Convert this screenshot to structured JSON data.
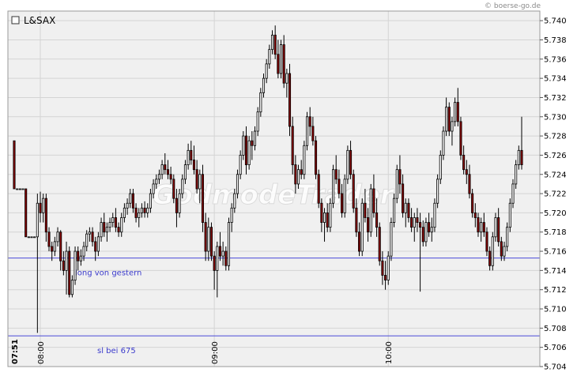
{
  "credit": "© boerse-go.de",
  "watermark": "GodmodeTrader",
  "legend": {
    "label": "L&SAX"
  },
  "colors": {
    "background": "#f0f0f0",
    "grid": "#d4d4d4",
    "up_body": "#ffffff",
    "down_body": "#8b0000",
    "wick": "#000000",
    "hline": "#4a4ad8"
  },
  "chart_data": {
    "type": "candlestick",
    "title": "L&SAX",
    "ylim": [
      5.704,
      5.741
    ],
    "y_ticks": [
      5.704,
      5.706,
      5.708,
      5.71,
      5.712,
      5.714,
      5.716,
      5.718,
      5.72,
      5.722,
      5.724,
      5.726,
      5.728,
      5.73,
      5.732,
      5.734,
      5.736,
      5.738,
      5.74
    ],
    "y_tick_labels": [
      "5.704",
      "5.706",
      "5.708",
      "5.710",
      "5.712",
      "5.714",
      "5.716",
      "5.718",
      "5.720",
      "5.722",
      "5.724",
      "5.726",
      "5.728",
      "5.730",
      "5.732",
      "5.734",
      "5.736",
      "5.738",
      "5.740"
    ],
    "x_time_labels": [
      {
        "label": "07:51",
        "bar": 0,
        "bold": true
      },
      {
        "label": "08:00",
        "bar": 9
      },
      {
        "label": "09:00",
        "bar": 69
      },
      {
        "label": "10:00",
        "bar": 129
      }
    ],
    "grid": true,
    "horizontal_lines": [
      {
        "value": 5.7153,
        "label": "long von gestern"
      },
      {
        "value": 5.7072,
        "label": "sl bei 675"
      }
    ],
    "candles": [
      [
        5.7275,
        5.7275,
        5.7225,
        5.7225
      ],
      [
        5.7225,
        5.7225,
        5.7225,
        5.7225
      ],
      [
        5.7225,
        5.7225,
        5.7225,
        5.7225
      ],
      [
        5.7225,
        5.7225,
        5.7225,
        5.7225
      ],
      [
        5.7225,
        5.7225,
        5.7175,
        5.7175
      ],
      [
        5.7175,
        5.7175,
        5.7175,
        5.7175
      ],
      [
        5.7175,
        5.7175,
        5.7175,
        5.7175
      ],
      [
        5.7175,
        5.7175,
        5.7175,
        5.7175
      ],
      [
        5.7175,
        5.722,
        5.7075,
        5.721
      ],
      [
        5.721,
        5.7222,
        5.719,
        5.72
      ],
      [
        5.72,
        5.722,
        5.719,
        5.7215
      ],
      [
        5.7215,
        5.722,
        5.717,
        5.718
      ],
      [
        5.718,
        5.7185,
        5.716,
        5.7165
      ],
      [
        5.7165,
        5.717,
        5.715,
        5.716
      ],
      [
        5.716,
        5.7175,
        5.7155,
        5.717
      ],
      [
        5.717,
        5.7185,
        5.7165,
        5.718
      ],
      [
        5.718,
        5.7182,
        5.714,
        5.715
      ],
      [
        5.715,
        5.716,
        5.7135,
        5.714
      ],
      [
        5.714,
        5.717,
        5.7115,
        5.716
      ],
      [
        5.716,
        5.7165,
        5.7112,
        5.7115
      ],
      [
        5.7115,
        5.7135,
        5.7112,
        5.713
      ],
      [
        5.713,
        5.7165,
        5.7125,
        5.716
      ],
      [
        5.716,
        5.7165,
        5.714,
        5.715
      ],
      [
        5.715,
        5.7162,
        5.7145,
        5.7155
      ],
      [
        5.7155,
        5.717,
        5.715,
        5.7165
      ],
      [
        5.7165,
        5.7182,
        5.716,
        5.7178
      ],
      [
        5.7178,
        5.7185,
        5.717,
        5.718
      ],
      [
        5.718,
        5.7185,
        5.7165,
        5.717
      ],
      [
        5.717,
        5.7175,
        5.715,
        5.716
      ],
      [
        5.716,
        5.718,
        5.7155,
        5.7175
      ],
      [
        5.7175,
        5.7195,
        5.717,
        5.719
      ],
      [
        5.719,
        5.72,
        5.7175,
        5.718
      ],
      [
        5.718,
        5.719,
        5.717,
        5.7185
      ],
      [
        5.7185,
        5.7195,
        5.718,
        5.719
      ],
      [
        5.719,
        5.72,
        5.7185,
        5.7195
      ],
      [
        5.7195,
        5.7205,
        5.718,
        5.7185
      ],
      [
        5.7185,
        5.719,
        5.7175,
        5.718
      ],
      [
        5.718,
        5.72,
        5.7175,
        5.7195
      ],
      [
        5.7195,
        5.721,
        5.719,
        5.7205
      ],
      [
        5.7205,
        5.7215,
        5.7198,
        5.721
      ],
      [
        5.721,
        5.7225,
        5.7205,
        5.722
      ],
      [
        5.722,
        5.7225,
        5.72,
        5.7205
      ],
      [
        5.7205,
        5.721,
        5.719,
        5.7195
      ],
      [
        5.7195,
        5.7205,
        5.7185,
        5.72
      ],
      [
        5.72,
        5.721,
        5.7195,
        5.7205
      ],
      [
        5.7205,
        5.7212,
        5.7195,
        5.72
      ],
      [
        5.72,
        5.721,
        5.7195,
        5.7205
      ],
      [
        5.7205,
        5.7225,
        5.72,
        5.722
      ],
      [
        5.722,
        5.7235,
        5.7215,
        5.723
      ],
      [
        5.723,
        5.724,
        5.7225,
        5.7235
      ],
      [
        5.7235,
        5.7245,
        5.723,
        5.724
      ],
      [
        5.724,
        5.7255,
        5.7235,
        5.725
      ],
      [
        5.725,
        5.7262,
        5.724,
        5.7245
      ],
      [
        5.7245,
        5.7255,
        5.7235,
        5.724
      ],
      [
        5.724,
        5.7248,
        5.723,
        5.7235
      ],
      [
        5.7235,
        5.724,
        5.721,
        5.7215
      ],
      [
        5.7215,
        5.7225,
        5.7185,
        5.72
      ],
      [
        5.72,
        5.7225,
        5.7195,
        5.722
      ],
      [
        5.722,
        5.724,
        5.7215,
        5.7235
      ],
      [
        5.7235,
        5.7255,
        5.723,
        5.725
      ],
      [
        5.725,
        5.7272,
        5.7245,
        5.7265
      ],
      [
        5.7265,
        5.7275,
        5.725,
        5.7255
      ],
      [
        5.7255,
        5.727,
        5.724,
        5.7245
      ],
      [
        5.7245,
        5.7255,
        5.722,
        5.7225
      ],
      [
        5.7225,
        5.7245,
        5.721,
        5.724
      ],
      [
        5.724,
        5.725,
        5.718,
        5.719
      ],
      [
        5.719,
        5.72,
        5.715,
        5.716
      ],
      [
        5.716,
        5.7195,
        5.715,
        5.7185
      ],
      [
        5.7185,
        5.719,
        5.715,
        5.7155
      ],
      [
        5.7155,
        5.716,
        5.712,
        5.714
      ],
      [
        5.714,
        5.717,
        5.7112,
        5.7165
      ],
      [
        5.7165,
        5.718,
        5.715,
        5.7155
      ],
      [
        5.7155,
        5.717,
        5.7145,
        5.716
      ],
      [
        5.716,
        5.7165,
        5.714,
        5.7145
      ],
      [
        5.7145,
        5.7195,
        5.714,
        5.719
      ],
      [
        5.719,
        5.721,
        5.718,
        5.7205
      ],
      [
        5.7205,
        5.7225,
        5.72,
        5.722
      ],
      [
        5.722,
        5.7245,
        5.7215,
        5.724
      ],
      [
        5.724,
        5.7265,
        5.7235,
        5.726
      ],
      [
        5.726,
        5.7285,
        5.7255,
        5.728
      ],
      [
        5.728,
        5.729,
        5.724,
        5.725
      ],
      [
        5.725,
        5.728,
        5.7245,
        5.7275
      ],
      [
        5.7275,
        5.7285,
        5.7255,
        5.727
      ],
      [
        5.727,
        5.729,
        5.7265,
        5.7285
      ],
      [
        5.7285,
        5.731,
        5.728,
        5.7305
      ],
      [
        5.7305,
        5.733,
        5.73,
        5.7325
      ],
      [
        5.7325,
        5.7345,
        5.732,
        5.734
      ],
      [
        5.734,
        5.736,
        5.7335,
        5.7355
      ],
      [
        5.7355,
        5.7375,
        5.735,
        5.737
      ],
      [
        5.737,
        5.739,
        5.7365,
        5.7385
      ],
      [
        5.7385,
        5.7395,
        5.736,
        5.7365
      ],
      [
        5.7365,
        5.738,
        5.734,
        5.7345
      ],
      [
        5.7345,
        5.738,
        5.734,
        5.7375
      ],
      [
        5.7375,
        5.7385,
        5.733,
        5.7335
      ],
      [
        5.7335,
        5.735,
        5.732,
        5.7345
      ],
      [
        5.7345,
        5.7355,
        5.728,
        5.729
      ],
      [
        5.729,
        5.73,
        5.724,
        5.725
      ],
      [
        5.725,
        5.726,
        5.722,
        5.723
      ],
      [
        5.723,
        5.725,
        5.7225,
        5.7245
      ],
      [
        5.7245,
        5.7255,
        5.7235,
        5.724
      ],
      [
        5.724,
        5.7275,
        5.7235,
        5.727
      ],
      [
        5.727,
        5.7305,
        5.7265,
        5.73
      ],
      [
        5.73,
        5.731,
        5.728,
        5.729
      ],
      [
        5.729,
        5.73,
        5.727,
        5.7275
      ],
      [
        5.7275,
        5.728,
        5.7235,
        5.724
      ],
      [
        5.724,
        5.7245,
        5.7205,
        5.721
      ],
      [
        5.721,
        5.7215,
        5.718,
        5.719
      ],
      [
        5.719,
        5.7205,
        5.717,
        5.72
      ],
      [
        5.72,
        5.721,
        5.718,
        5.7185
      ],
      [
        5.7185,
        5.7215,
        5.718,
        5.721
      ],
      [
        5.721,
        5.725,
        5.7205,
        5.7245
      ],
      [
        5.7245,
        5.726,
        5.723,
        5.7235
      ],
      [
        5.7235,
        5.7245,
        5.7215,
        5.722
      ],
      [
        5.722,
        5.723,
        5.7195,
        5.72
      ],
      [
        5.72,
        5.724,
        5.7195,
        5.7235
      ],
      [
        5.7235,
        5.727,
        5.723,
        5.7265
      ],
      [
        5.7265,
        5.7275,
        5.7235,
        5.724
      ],
      [
        5.724,
        5.7245,
        5.72,
        5.7205
      ],
      [
        5.7205,
        5.7215,
        5.7175,
        5.718
      ],
      [
        5.718,
        5.719,
        5.7155,
        5.716
      ],
      [
        5.716,
        5.7215,
        5.7155,
        5.721
      ],
      [
        5.721,
        5.7225,
        5.719,
        5.7195
      ],
      [
        5.7195,
        5.7205,
        5.717,
        5.718
      ],
      [
        5.718,
        5.723,
        5.7175,
        5.7225
      ],
      [
        5.7225,
        5.724,
        5.7195,
        5.72
      ],
      [
        5.72,
        5.7215,
        5.7175,
        5.7185
      ],
      [
        5.7185,
        5.719,
        5.7145,
        5.715
      ],
      [
        5.715,
        5.716,
        5.7125,
        5.7135
      ],
      [
        5.7135,
        5.715,
        5.712,
        5.713
      ],
      [
        5.713,
        5.716,
        5.7125,
        5.7155
      ],
      [
        5.7155,
        5.7195,
        5.715,
        5.719
      ],
      [
        5.719,
        5.722,
        5.7185,
        5.7215
      ],
      [
        5.7215,
        5.725,
        5.721,
        5.7245
      ],
      [
        5.7245,
        5.726,
        5.722,
        5.723
      ],
      [
        5.723,
        5.724,
        5.7195,
        5.72
      ],
      [
        5.72,
        5.7215,
        5.7185,
        5.721
      ],
      [
        5.721,
        5.7215,
        5.719,
        5.7195
      ],
      [
        5.7195,
        5.7205,
        5.718,
        5.7185
      ],
      [
        5.7185,
        5.72,
        5.717,
        5.7195
      ],
      [
        5.7195,
        5.7205,
        5.718,
        5.719
      ],
      [
        5.719,
        5.72,
        5.7118,
        5.7185
      ],
      [
        5.7185,
        5.7192,
        5.7165,
        5.717
      ],
      [
        5.717,
        5.7195,
        5.7165,
        5.719
      ],
      [
        5.719,
        5.72,
        5.7175,
        5.718
      ],
      [
        5.718,
        5.7195,
        5.717,
        5.7185
      ],
      [
        5.7185,
        5.7215,
        5.718,
        5.721
      ],
      [
        5.721,
        5.724,
        5.7205,
        5.7235
      ],
      [
        5.7235,
        5.7265,
        5.723,
        5.726
      ],
      [
        5.726,
        5.729,
        5.7255,
        5.7285
      ],
      [
        5.7285,
        5.732,
        5.728,
        5.731
      ],
      [
        5.731,
        5.7315,
        5.728,
        5.7285
      ],
      [
        5.7285,
        5.73,
        5.727,
        5.7295
      ],
      [
        5.7295,
        5.732,
        5.729,
        5.7315
      ],
      [
        5.7315,
        5.733,
        5.729,
        5.7295
      ],
      [
        5.7295,
        5.73,
        5.7255,
        5.726
      ],
      [
        5.726,
        5.727,
        5.724,
        5.7245
      ],
      [
        5.7245,
        5.7255,
        5.723,
        5.724
      ],
      [
        5.724,
        5.725,
        5.7215,
        5.722
      ],
      [
        5.722,
        5.7225,
        5.7195,
        5.72
      ],
      [
        5.72,
        5.721,
        5.7185,
        5.7195
      ],
      [
        5.7195,
        5.72,
        5.7175,
        5.718
      ],
      [
        5.718,
        5.7195,
        5.717,
        5.719
      ],
      [
        5.719,
        5.72,
        5.7175,
        5.718
      ],
      [
        5.718,
        5.7185,
        5.7155,
        5.716
      ],
      [
        5.716,
        5.7165,
        5.714,
        5.7145
      ],
      [
        5.7145,
        5.718,
        5.714,
        5.7175
      ],
      [
        5.7175,
        5.72,
        5.717,
        5.7195
      ],
      [
        5.7195,
        5.7205,
        5.7165,
        5.717
      ],
      [
        5.717,
        5.7175,
        5.715,
        5.7155
      ],
      [
        5.7155,
        5.717,
        5.715,
        5.7165
      ],
      [
        5.7165,
        5.719,
        5.716,
        5.7185
      ],
      [
        5.7185,
        5.7215,
        5.718,
        5.721
      ],
      [
        5.721,
        5.7235,
        5.7205,
        5.723
      ],
      [
        5.723,
        5.7255,
        5.7225,
        5.725
      ],
      [
        5.725,
        5.727,
        5.7245,
        5.7265
      ],
      [
        5.7265,
        5.73,
        5.7245,
        5.725
      ]
    ]
  }
}
